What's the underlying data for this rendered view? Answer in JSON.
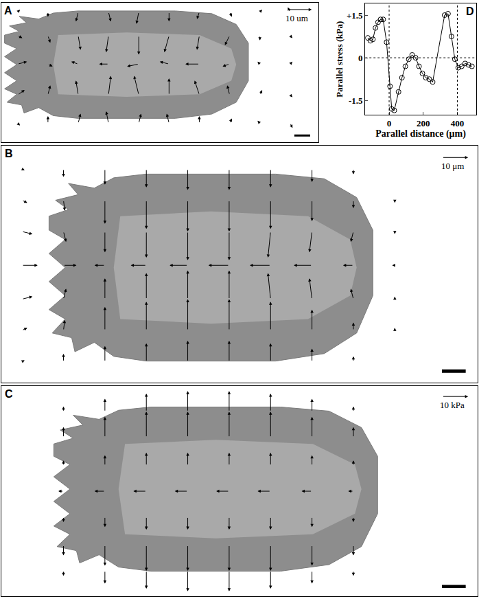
{
  "chart_data": [
    {
      "panel": "A",
      "type": "quiver",
      "xlim": [
        0,
        136
      ],
      "ylim": [
        0,
        59
      ],
      "tick_labels": false,
      "scale_arrow": {
        "length": 10,
        "label": "10 um"
      },
      "x": [
        7,
        20,
        33,
        46,
        59,
        72,
        85,
        98,
        111,
        124
      ],
      "y": [
        8,
        20,
        33,
        45,
        55
      ],
      "u": [
        [
          1,
          0,
          1,
          -1,
          1,
          -1,
          0,
          1,
          -1,
          1
        ],
        [
          3,
          1,
          -1,
          1,
          -2,
          0,
          -2,
          -1,
          1,
          1
        ],
        [
          4,
          2,
          -3,
          -4,
          -5,
          -4,
          -6,
          -3,
          -1,
          1
        ],
        [
          2,
          1,
          1,
          -1,
          0,
          -2,
          -1,
          -2,
          0,
          1
        ],
        [
          1,
          0,
          -1,
          1,
          -1,
          0,
          -1,
          1,
          1,
          -1
        ]
      ],
      "v": [
        [
          -1,
          3,
          4,
          5,
          4,
          4,
          3,
          2,
          1,
          -2
        ],
        [
          2,
          4,
          6,
          8,
          8,
          7,
          6,
          4,
          2,
          -1
        ],
        [
          1,
          -1,
          1,
          0,
          -1,
          1,
          0,
          -1,
          1,
          1
        ],
        [
          -1,
          -3,
          -6,
          -7,
          -8,
          -7,
          -6,
          -4,
          -2,
          -1
        ],
        [
          1,
          -2,
          -4,
          -4,
          -5,
          -4,
          -3,
          -2,
          1,
          2
        ]
      ]
    },
    {
      "panel": "B",
      "type": "quiver",
      "xlim": [
        0,
        184
      ],
      "ylim": [
        0,
        91
      ],
      "tick_labels": false,
      "scale_arrow": {
        "length": 10,
        "label": "10 μm"
      },
      "x": [
        8,
        24,
        40,
        56,
        72,
        88,
        104,
        120,
        136,
        152,
        168
      ],
      "y": [
        8,
        20,
        32,
        45,
        58,
        70,
        82
      ],
      "u": [
        [
          1,
          0,
          0,
          0,
          0,
          0,
          0,
          0,
          0,
          0,
          0
        ],
        [
          2,
          0.5,
          0,
          0,
          0,
          0,
          0,
          0,
          0,
          0,
          0
        ],
        [
          4,
          1,
          0,
          0,
          0,
          0,
          -1,
          -1,
          -1,
          0,
          0
        ],
        [
          6,
          5,
          -4,
          -6,
          -7,
          -8,
          -8,
          -7,
          -4,
          -1,
          -0.5
        ],
        [
          4,
          1,
          0,
          0,
          0,
          0,
          -1,
          -1,
          -1,
          0,
          0
        ],
        [
          2,
          0.5,
          0,
          0,
          0,
          0,
          0,
          0,
          0,
          0,
          0
        ],
        [
          1,
          0,
          0,
          0,
          0,
          0,
          0,
          0,
          0,
          0,
          0
        ]
      ],
      "v": [
        [
          0.5,
          3,
          6,
          7,
          8,
          8,
          7,
          5,
          2,
          0.5,
          0.3
        ],
        [
          1,
          4,
          9,
          11,
          12,
          12,
          11,
          8,
          3,
          1,
          0.5
        ],
        [
          1,
          4,
          8,
          10,
          11,
          11,
          10,
          8,
          4,
          1,
          0.5
        ],
        [
          0,
          0,
          0,
          0,
          0,
          0,
          0,
          0,
          0,
          0,
          0
        ],
        [
          -1,
          -4,
          -8,
          -10,
          -11,
          -11,
          -10,
          -8,
          -4,
          -1,
          -0.5
        ],
        [
          -1,
          -4,
          -9,
          -11,
          -12,
          -12,
          -11,
          -8,
          -3,
          -1,
          -0.5
        ],
        [
          -0.5,
          -3,
          -6,
          -7,
          -8,
          -8,
          -7,
          -5,
          -2,
          -0.5,
          -0.3
        ]
      ]
    },
    {
      "panel": "C",
      "type": "quiver",
      "xlim": [
        0,
        184
      ],
      "ylim": [
        0,
        82
      ],
      "tick_labels": false,
      "scale_arrow": {
        "length": 10,
        "label": "10 kPa"
      },
      "x": [
        8,
        24,
        40,
        56,
        72,
        88,
        104,
        120,
        136,
        152,
        168
      ],
      "y": [
        10,
        20,
        31,
        41,
        51,
        62,
        72
      ],
      "u": [
        [
          0,
          0,
          0,
          0,
          0,
          0,
          0,
          0,
          0,
          0,
          0
        ],
        [
          0,
          0,
          0,
          0,
          0,
          0,
          0,
          0,
          0,
          0,
          0
        ],
        [
          0,
          0,
          0,
          0,
          0,
          0,
          0,
          0,
          0,
          0,
          0
        ],
        [
          0.3,
          -2,
          -4,
          -5,
          -5,
          -5,
          -5,
          -4,
          -2,
          -0.3,
          -0.2
        ],
        [
          0,
          0,
          0,
          0,
          0,
          0,
          0,
          0,
          0,
          0,
          0
        ],
        [
          0,
          0,
          0,
          0,
          0,
          0,
          0,
          0,
          0,
          0,
          0
        ],
        [
          0,
          0,
          0,
          0,
          0,
          0,
          0,
          0,
          0,
          0,
          0
        ]
      ],
      "v": [
        [
          -0.2,
          -2,
          -5,
          -7,
          -8,
          -8,
          -7,
          -5,
          -2,
          -0.2,
          -0.2
        ],
        [
          -0.3,
          -4,
          -8,
          -10,
          -10,
          -10,
          -10,
          -8,
          -4,
          -0.3,
          -0.2
        ],
        [
          -0.3,
          -2,
          -4,
          -5,
          -5,
          -5,
          -5,
          -4,
          -2,
          -0.3,
          -0.2
        ],
        [
          0,
          0,
          0,
          0,
          0,
          0,
          0,
          0,
          0,
          0,
          0
        ],
        [
          0.3,
          2,
          4,
          5,
          5,
          5,
          5,
          4,
          2,
          0.3,
          0.2
        ],
        [
          0.3,
          4,
          8,
          10,
          10,
          10,
          10,
          8,
          4,
          0.3,
          0.2
        ],
        [
          0.2,
          2,
          5,
          7,
          8,
          8,
          7,
          5,
          2,
          0.2,
          0.2
        ]
      ]
    },
    {
      "panel": "D",
      "type": "line",
      "marker": "circle-open",
      "color": "#000000",
      "grid": false,
      "x_label": "Parallel distance (μm)",
      "y_label": "Parallel stress (kPa)",
      "xlim": [
        -140,
        510
      ],
      "ylim": [
        -2.0,
        1.9
      ],
      "xticks": [
        0,
        200,
        400
      ],
      "yticks": [
        {
          "value": 1.5,
          "label": "+1.5"
        },
        0,
        {
          "value": -1.5,
          "label": "-1.5"
        }
      ],
      "vlines": [
        0,
        400
      ],
      "hlines": [
        0
      ],
      "x": [
        -125,
        -110,
        -95,
        -80,
        -65,
        -50,
        -35,
        -15,
        5,
        15,
        30,
        55,
        75,
        95,
        115,
        135,
        155,
        175,
        195,
        215,
        235,
        255,
        325,
        345,
        365,
        385,
        405,
        425,
        445,
        465,
        485
      ],
      "values": [
        0.7,
        0.6,
        0.65,
        1.05,
        1.25,
        1.35,
        1.35,
        0.55,
        -1.0,
        -1.8,
        -1.85,
        -1.2,
        -0.7,
        -0.3,
        -0.05,
        0.1,
        0.0,
        -0.3,
        -0.55,
        -0.7,
        -0.75,
        -0.85,
        1.5,
        1.55,
        0.75,
        -0.05,
        -0.35,
        -0.3,
        -0.2,
        -0.25,
        -0.3
      ]
    }
  ]
}
